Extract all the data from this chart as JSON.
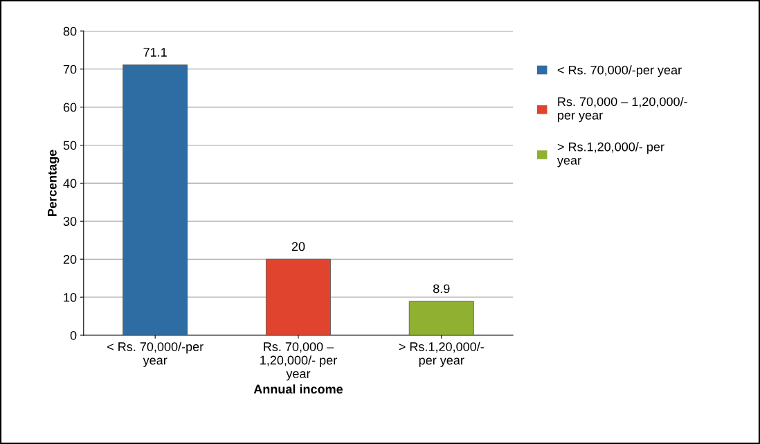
{
  "chart_data": {
    "type": "bar",
    "xlabel": "Annual income",
    "ylabel": "Percentage",
    "categories": [
      "< Rs. 70,000/-per\nyear",
      "Rs. 70,000 –\n1,20,000/- per\nyear",
      "> Rs.1,20,000/-\nper year"
    ],
    "series": [
      {
        "name": "< Rs. 70,000/-per year",
        "color": "#2e6da4",
        "values": [
          71.1,
          null,
          null
        ]
      },
      {
        "name": "Rs. 70,000 – 1,20,000/-\nper year",
        "color": "#e0442e",
        "values": [
          null,
          20,
          null
        ]
      },
      {
        "name": "> Rs.1,20,000/- per\nyear",
        "color": "#8fb030",
        "values": [
          null,
          null,
          8.9
        ]
      }
    ],
    "ylim": [
      0,
      80
    ],
    "yticks": [
      0,
      10,
      20,
      30,
      40,
      50,
      60,
      70,
      80
    ],
    "grid": "y",
    "legend": "right",
    "data_labels": true
  }
}
